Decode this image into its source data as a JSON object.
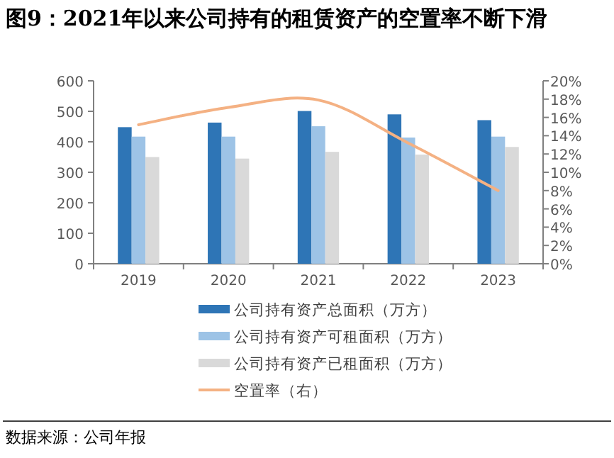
{
  "chart_data": {
    "type": "bar",
    "title": "图9：2021年以来公司持有的租赁资产的空置率不断下滑",
    "categories": [
      "2019",
      "2020",
      "2021",
      "2022",
      "2023"
    ],
    "series": [
      {
        "name": "公司持有资产总面积（万方）",
        "color": "#2e75b6",
        "values": [
          448,
          463,
          501,
          490,
          471
        ]
      },
      {
        "name": "公司持有资产可租面积（万方）",
        "color": "#9dc3e6",
        "values": [
          417,
          417,
          451,
          414,
          417
        ]
      },
      {
        "name": "公司持有资产已租面积（万方）",
        "color": "#d9d9d9",
        "values": [
          350,
          345,
          367,
          358,
          383
        ]
      },
      {
        "name": "空置率（右）",
        "color": "#f4b183",
        "type": "line",
        "axis": "y2",
        "values": [
          15.2,
          17.1,
          17.9,
          13.2,
          8.0
        ]
      }
    ],
    "ylim": [
      0,
      600
    ],
    "yticks": [
      0,
      100,
      200,
      300,
      400,
      500,
      600
    ],
    "y2lim": [
      0,
      20
    ],
    "y2ticks": [
      {
        "value": 0,
        "label": "0%"
      },
      {
        "value": 2,
        "label": "2%"
      },
      {
        "value": 4,
        "label": "4%"
      },
      {
        "value": 6,
        "label": "6%"
      },
      {
        "value": 8,
        "label": "8%"
      },
      {
        "value": 10,
        "label": "10%"
      },
      {
        "value": 12,
        "label": "12%"
      },
      {
        "value": 14,
        "label": "14%"
      },
      {
        "value": 16,
        "label": "16%"
      },
      {
        "value": 18,
        "label": "18%"
      },
      {
        "value": 20,
        "label": "20%"
      }
    ],
    "legend": "bottom",
    "annotations": [
      "数据来源：公司年报"
    ]
  }
}
